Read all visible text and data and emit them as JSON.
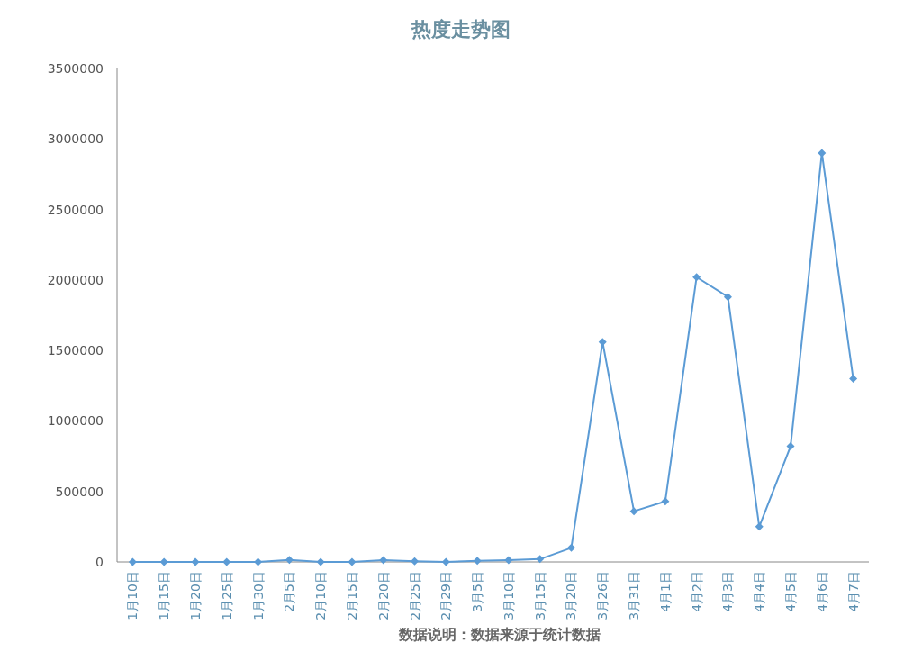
{
  "chart_data": {
    "type": "line",
    "title": "热度走势图",
    "categories": [
      "1月10日",
      "1月15日",
      "1月20日",
      "1月25日",
      "1月30日",
      "2月5日",
      "2月10日",
      "2月15日",
      "2月20日",
      "2月25日",
      "2月29日",
      "3月5日",
      "3月10日",
      "3月15日",
      "3月20日",
      "3月26日",
      "3月31日",
      "4月1日",
      "4月2日",
      "4月3日",
      "4月4日",
      "4月5日",
      "4月6日",
      "4月7日"
    ],
    "series": [
      {
        "color": "#5b9bd5",
        "values": [
          0,
          0,
          0,
          0,
          0,
          15000,
          0,
          0,
          12000,
          5000,
          0,
          8000,
          12000,
          20000,
          100000,
          1560000,
          360000,
          430000,
          2020000,
          1880000,
          250000,
          820000,
          2900000,
          1300000
        ]
      }
    ],
    "ylim": [
      0,
      3500000
    ],
    "yticks": [
      0,
      500000,
      1000000,
      1500000,
      2000000,
      2500000,
      3000000,
      3500000
    ],
    "grid": false,
    "marker": "diamond",
    "line_style": "solid",
    "annotations": [
      "数据说明：数据来源于统计数据"
    ]
  }
}
